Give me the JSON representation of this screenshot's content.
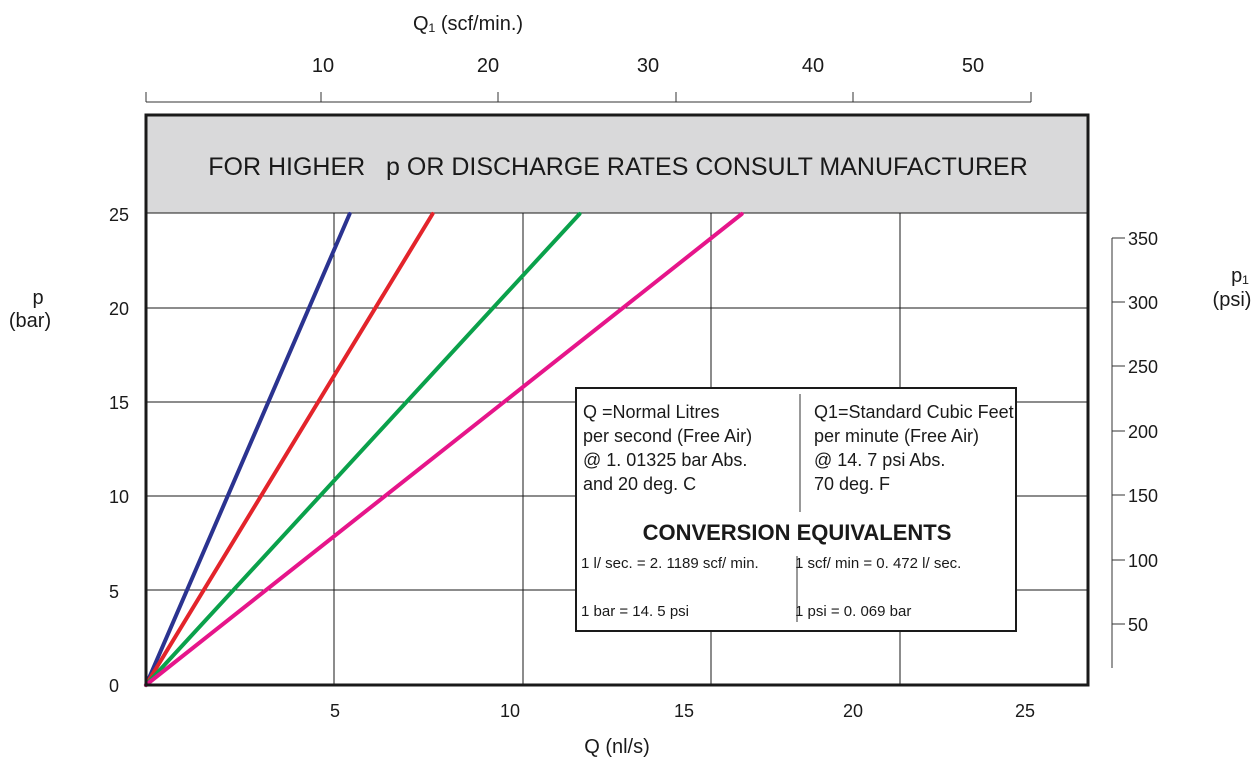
{
  "chart_data": {
    "type": "line",
    "top_axis": {
      "label": "Q₁ (scf/min.)",
      "ticks": [
        "10",
        "20",
        "30",
        "40",
        "50"
      ]
    },
    "x": {
      "label": "Q (nl/s)",
      "ticks": [
        "5",
        "10",
        "15",
        "20",
        "25"
      ],
      "range": [
        0,
        25
      ]
    },
    "y": {
      "label_line1": "p",
      "label_line2": "(bar)",
      "ticks": [
        "0",
        "5",
        "10",
        "15",
        "20",
        "25"
      ],
      "range": [
        0,
        25
      ]
    },
    "right_axis": {
      "label_line1": "p₁",
      "label_line2": "(psi)",
      "ticks": [
        "50",
        "100",
        "150",
        "200",
        "250",
        "300",
        "350"
      ]
    },
    "banner": "FOR HIGHER   p OR DISCHARGE RATES CONSULT MANUFACTURER",
    "grid": true,
    "series": [
      {
        "color": "#2b3390",
        "points": [
          [
            0,
            0
          ],
          [
            5.4,
            25
          ]
        ]
      },
      {
        "color": "#e3242b",
        "points": [
          [
            0,
            0
          ],
          [
            7.6,
            25
          ]
        ]
      },
      {
        "color": "#0aa14b",
        "points": [
          [
            0,
            0
          ],
          [
            11.5,
            25
          ]
        ]
      },
      {
        "color": "#e6158a",
        "points": [
          [
            0,
            0
          ],
          [
            15.8,
            25
          ]
        ]
      }
    ],
    "info_box": {
      "left_lines": [
        "Q =Normal Litres",
        "per second (Free Air)",
        "@ 1. 01325 bar Abs.",
        "and 20 deg. C"
      ],
      "right_lines": [
        "Q1=Standard Cubic Feet",
        "per minute (Free Air)",
        "@ 14. 7 psi Abs.",
        "70 deg. F"
      ],
      "heading": "CONVERSION EQUIVALENTS",
      "conv_1_left": "1 l/ sec. = 2. 1189 scf/ min.",
      "conv_1_right": "1 scf/ min = 0. 472 l/ sec.",
      "conv_2_left": "1 bar = 14. 5 psi",
      "conv_2_right": "1 psi = 0. 069 bar"
    }
  }
}
